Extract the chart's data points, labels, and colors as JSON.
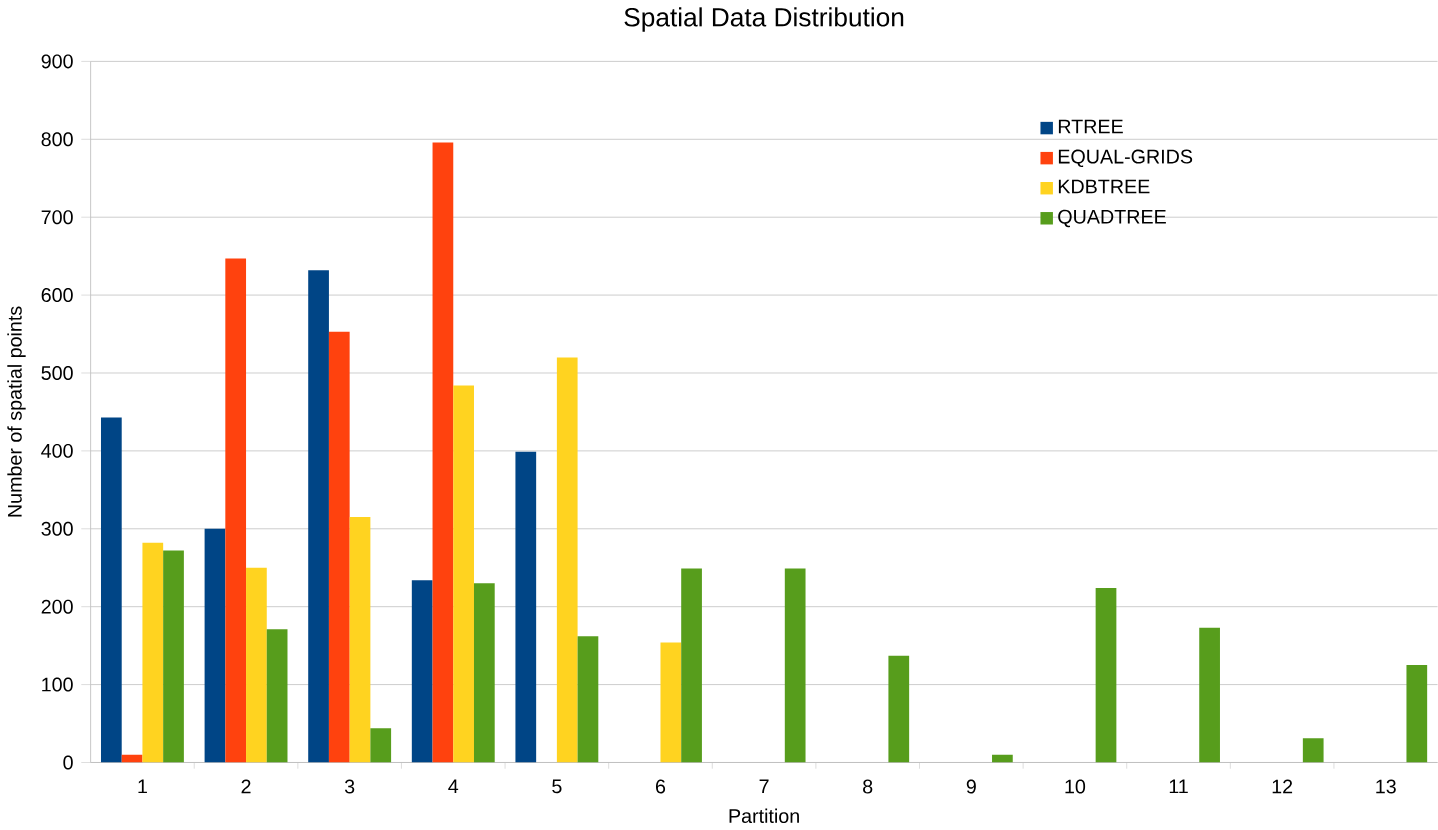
{
  "chart_data": {
    "type": "bar",
    "title": "Spatial Data Distribution",
    "xlabel": "Partition",
    "ylabel": "Number of spatial points",
    "categories": [
      "1",
      "2",
      "3",
      "4",
      "5",
      "6",
      "7",
      "8",
      "9",
      "10",
      "11",
      "12",
      "13"
    ],
    "series": [
      {
        "name": "RTREE",
        "color": "#004586",
        "values": [
          443,
          300,
          632,
          234,
          399,
          null,
          null,
          null,
          null,
          null,
          null,
          null,
          null
        ]
      },
      {
        "name": "EQUAL-GRIDS",
        "color": "#ff420e",
        "values": [
          10,
          647,
          553,
          796,
          null,
          null,
          null,
          null,
          null,
          null,
          null,
          null,
          null
        ]
      },
      {
        "name": "KDBTREE",
        "color": "#ffd320",
        "values": [
          282,
          250,
          315,
          484,
          520,
          154,
          null,
          null,
          null,
          null,
          null,
          null,
          null
        ]
      },
      {
        "name": "QUADTREE",
        "color": "#579d1c",
        "values": [
          272,
          171,
          44,
          230,
          162,
          249,
          249,
          137,
          10,
          224,
          173,
          31,
          125
        ]
      }
    ],
    "ylim": [
      0,
      900
    ],
    "yticks": [
      0,
      100,
      200,
      300,
      400,
      500,
      600,
      700,
      800,
      900
    ],
    "grid": "y",
    "legend": "top right"
  }
}
